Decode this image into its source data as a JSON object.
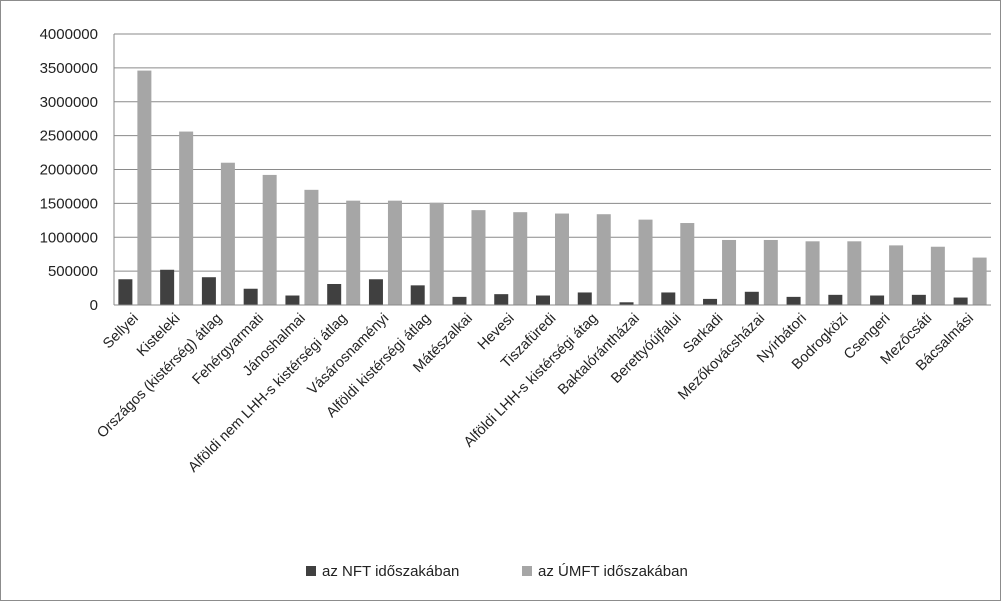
{
  "chart_data": {
    "type": "bar",
    "title": "",
    "xlabel": "",
    "ylabel": "",
    "ylim": [
      0,
      4000000
    ],
    "yticks": [
      "0",
      "500000",
      "1000000",
      "1500000",
      "2000000",
      "2500000",
      "3000000",
      "3500000",
      "4000000"
    ],
    "grid": true,
    "legend_position": "bottom",
    "categories": [
      "Sellyei",
      "Kisteleki",
      "Országos (kistérség) átlag",
      "Fehérgyarmati",
      "Jánoshalmai",
      "Alföldi nem LHH-s kistérségi átlag",
      "Vásárosnaményi",
      "Alföldi kistérségi átlag",
      "Mátészalkai",
      "Hevesi",
      "Tiszafüredi",
      "Alföldi LHH-s kistérségi átag",
      "Baktalórántházai",
      "Berettyóújfalui",
      "Sarkadi",
      "Mezőkovácsházai",
      "Nyírbátori",
      "Bodrogközi",
      "Csengeri",
      "Mezőcsáti",
      "Bácsalmási"
    ],
    "series": [
      {
        "name": "az NFT időszakában",
        "color": "#404040",
        "values": [
          380000,
          520000,
          410000,
          240000,
          140000,
          310000,
          380000,
          290000,
          120000,
          160000,
          140000,
          185000,
          40000,
          185000,
          90000,
          195000,
          120000,
          150000,
          140000,
          150000,
          110000
        ]
      },
      {
        "name": "az ÚMFT időszakában",
        "color": "#a6a6a6",
        "values": [
          3460000,
          2560000,
          2100000,
          1920000,
          1700000,
          1540000,
          1540000,
          1510000,
          1400000,
          1370000,
          1350000,
          1340000,
          1260000,
          1210000,
          960000,
          960000,
          940000,
          940000,
          880000,
          860000,
          700000
        ]
      }
    ]
  }
}
